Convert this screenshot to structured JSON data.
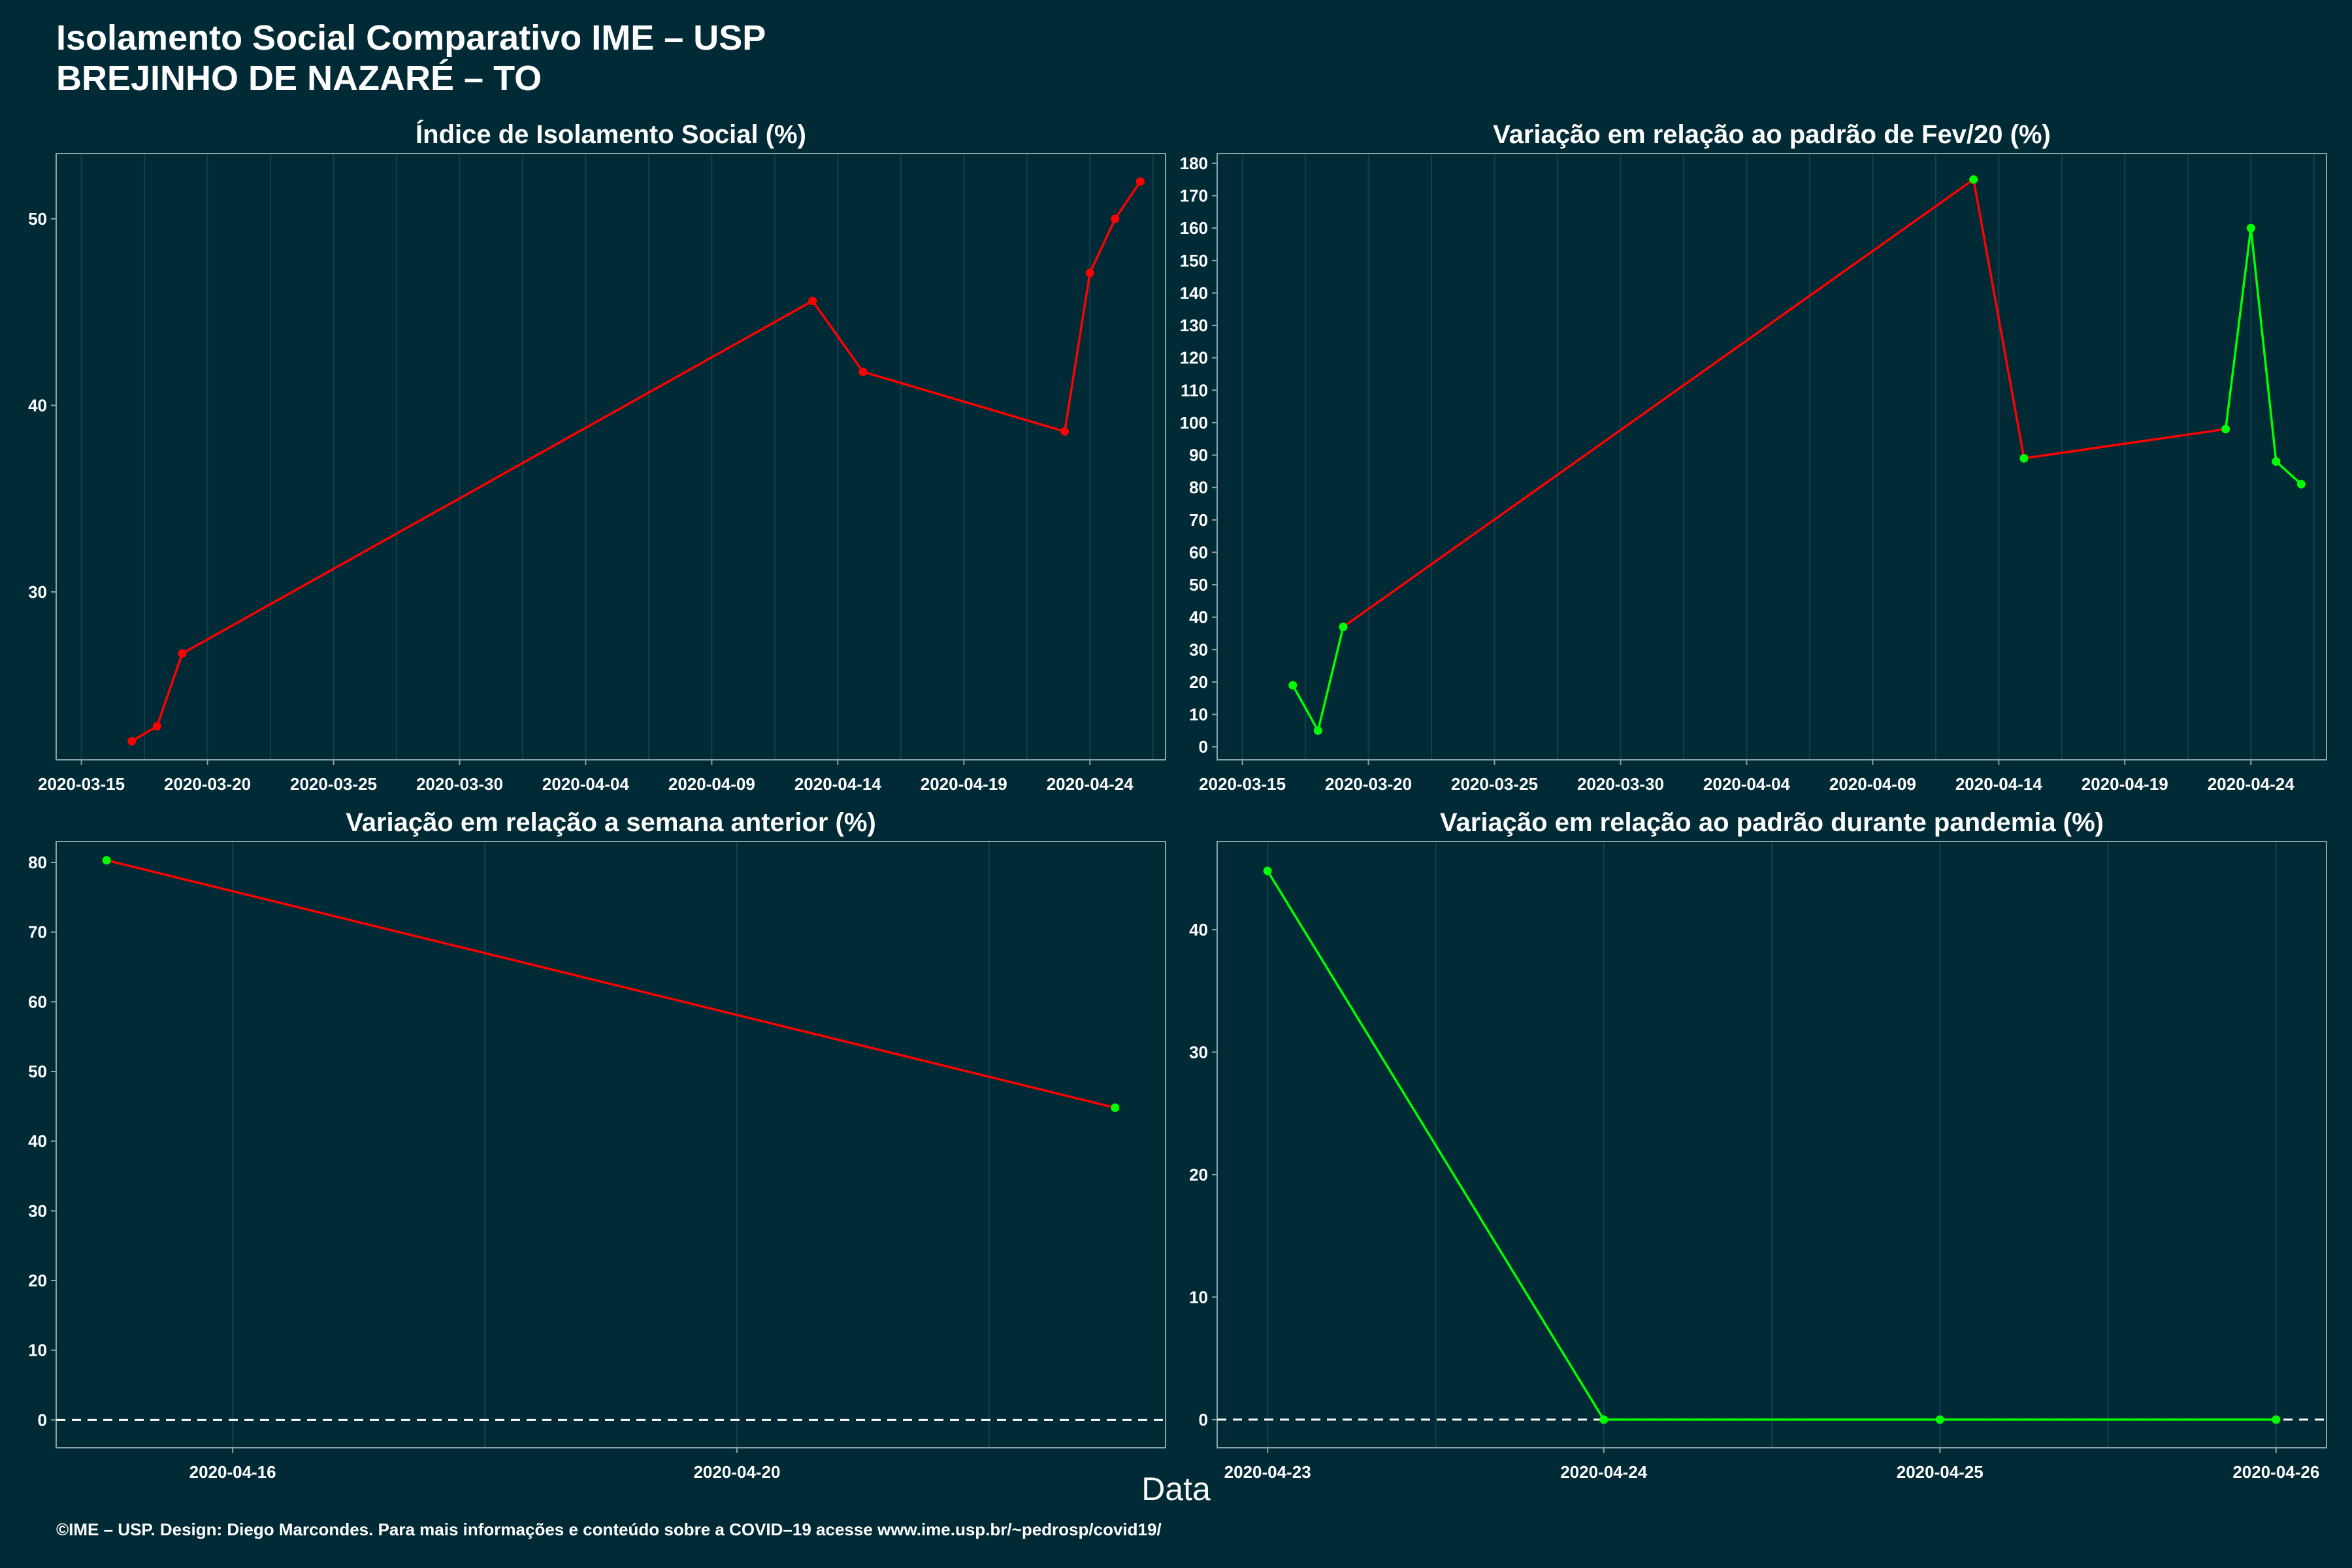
{
  "header": {
    "title": "Isolamento Social Comparativo IME – USP",
    "subtitle": "BREJINHO DE NAZARÉ – TO"
  },
  "x_axis_label": "Data",
  "caption": "©IME – USP. Design: Diego Marcondes. Para mais informações e conteúdo sobre a COVID–19 acesse www.ime.usp.br/~pedrosp/covid19/",
  "colors": {
    "background": "#002b36",
    "panel": "#002b36",
    "grid": "#14404b",
    "increase": "#00ff00",
    "decrease": "#ff0000",
    "zero_line": "#ffffff"
  },
  "chart_data": [
    {
      "type": "line",
      "title": "Índice de Isolamento Social (%)",
      "xlim": [
        "2020-03-14",
        "2020-04-27"
      ],
      "ylim": [
        21.0,
        53.5
      ],
      "x_ticks": [
        "2020-03-15",
        "2020-03-20",
        "2020-03-25",
        "2020-03-30",
        "2020-04-04",
        "2020-04-09",
        "2020-04-14",
        "2020-04-19",
        "2020-04-24"
      ],
      "y_ticks": [
        30,
        40,
        50
      ],
      "grid": true,
      "points": [
        {
          "x": "2020-03-17",
          "y": 22.0,
          "color": "decrease"
        },
        {
          "x": "2020-03-18",
          "y": 22.8,
          "color": "decrease"
        },
        {
          "x": "2020-03-19",
          "y": 26.7,
          "color": "decrease"
        },
        {
          "x": "2020-04-13",
          "y": 45.6,
          "color": "decrease"
        },
        {
          "x": "2020-04-15",
          "y": 41.8,
          "color": "decrease"
        },
        {
          "x": "2020-04-23",
          "y": 38.6,
          "color": "decrease"
        },
        {
          "x": "2020-04-24",
          "y": 47.1,
          "color": "decrease"
        },
        {
          "x": "2020-04-25",
          "y": 50.0,
          "color": "decrease"
        },
        {
          "x": "2020-04-26",
          "y": 52.0,
          "color": "decrease"
        }
      ],
      "segment_colors": [
        "decrease",
        "decrease",
        "decrease",
        "decrease",
        "decrease",
        "decrease",
        "decrease",
        "decrease"
      ],
      "zero_line": false
    },
    {
      "type": "line",
      "title": "Variação em relação ao padrão de Fev/20 (%)",
      "xlim": [
        "2020-03-14",
        "2020-04-27"
      ],
      "ylim": [
        -4,
        183
      ],
      "x_ticks": [
        "2020-03-15",
        "2020-03-20",
        "2020-03-25",
        "2020-03-30",
        "2020-04-04",
        "2020-04-09",
        "2020-04-14",
        "2020-04-19",
        "2020-04-24"
      ],
      "y_ticks": [
        0,
        10,
        20,
        30,
        40,
        50,
        60,
        70,
        80,
        90,
        100,
        110,
        120,
        130,
        140,
        150,
        160,
        170,
        180
      ],
      "grid": true,
      "points": [
        {
          "x": "2020-03-17",
          "y": 19,
          "color": "increase"
        },
        {
          "x": "2020-03-18",
          "y": 5,
          "color": "increase"
        },
        {
          "x": "2020-03-19",
          "y": 37,
          "color": "increase"
        },
        {
          "x": "2020-04-13",
          "y": 175,
          "color": "increase"
        },
        {
          "x": "2020-04-15",
          "y": 89,
          "color": "increase"
        },
        {
          "x": "2020-04-23",
          "y": 98,
          "color": "increase"
        },
        {
          "x": "2020-04-24",
          "y": 160,
          "color": "increase"
        },
        {
          "x": "2020-04-25",
          "y": 88,
          "color": "increase"
        },
        {
          "x": "2020-04-26",
          "y": 81,
          "color": "increase"
        }
      ],
      "segment_colors": [
        "increase",
        "increase",
        "decrease",
        "decrease",
        "decrease",
        "increase",
        "increase",
        "increase"
      ],
      "zero_line": false
    },
    {
      "type": "line",
      "title": "Variação em relação a semana anterior (%)",
      "xlim": [
        "2020-04-14.6",
        "2020-04-23.4"
      ],
      "ylim": [
        -4,
        83
      ],
      "x_ticks": [
        "2020-04-16",
        "2020-04-20"
      ],
      "y_ticks": [
        0,
        10,
        20,
        30,
        40,
        50,
        60,
        70,
        80
      ],
      "grid": true,
      "points": [
        {
          "x": "2020-04-15",
          "y": 80.3,
          "color": "increase"
        },
        {
          "x": "2020-04-23",
          "y": 44.8,
          "color": "increase"
        }
      ],
      "segment_colors": [
        "decrease"
      ],
      "zero_line": true
    },
    {
      "type": "line",
      "title": "Variação em relação ao padrão durante pandemia (%)",
      "xlim": [
        "2020-04-22.85",
        "2020-04-26.15"
      ],
      "ylim": [
        -2.3,
        47.2
      ],
      "x_ticks": [
        "2020-04-23",
        "2020-04-24",
        "2020-04-25",
        "2020-04-26"
      ],
      "y_ticks": [
        0,
        10,
        20,
        30,
        40
      ],
      "grid": true,
      "points": [
        {
          "x": "2020-04-23",
          "y": 44.8,
          "color": "increase"
        },
        {
          "x": "2020-04-24",
          "y": 0,
          "color": "increase"
        },
        {
          "x": "2020-04-25",
          "y": 0,
          "color": "increase"
        },
        {
          "x": "2020-04-26",
          "y": 0,
          "color": "increase"
        }
      ],
      "segment_colors": [
        "increase",
        "increase",
        "increase"
      ],
      "zero_line": true
    }
  ]
}
